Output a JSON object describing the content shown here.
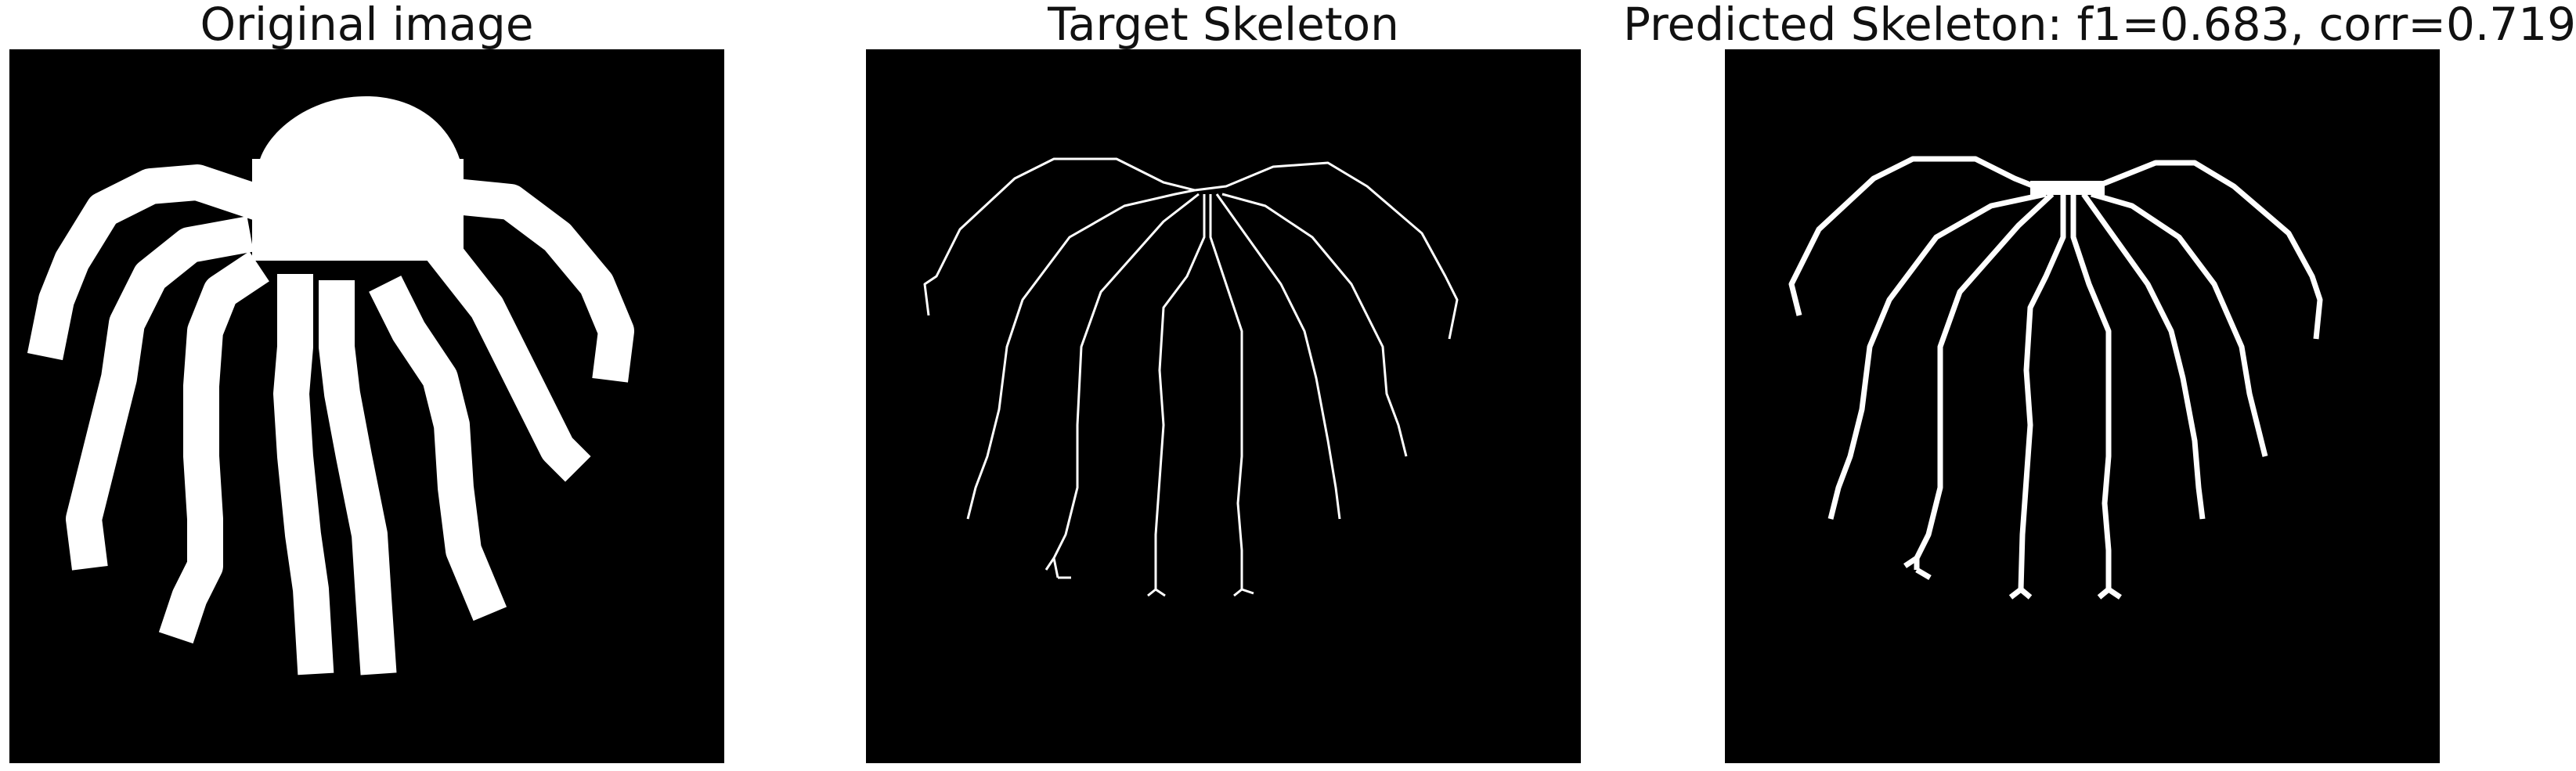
{
  "panels": [
    {
      "title": "Original image",
      "kind": "original"
    },
    {
      "title": "Target Skeleton",
      "kind": "target"
    },
    {
      "title": "Predicted Skeleton: f1=0.683, corr=0.719",
      "kind": "predicted"
    }
  ],
  "colors": {
    "background": "#000000",
    "foreground": "#ffffff",
    "page": "#ffffff"
  }
}
